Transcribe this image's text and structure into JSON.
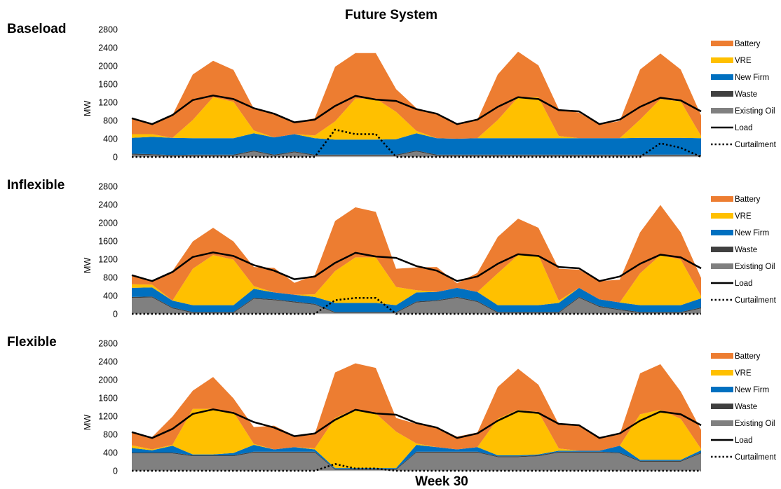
{
  "chart_data": {
    "type": "area",
    "title": "Future System",
    "xlabel": "Week 30",
    "ylabel": "MW",
    "ylim": [
      0,
      2800
    ],
    "yticks": [
      "0",
      "400",
      "800",
      "1200",
      "1600",
      "2000",
      "2400",
      "2800"
    ],
    "x_hours": [
      0,
      6,
      12,
      18,
      24,
      30,
      36,
      42,
      48,
      54,
      60,
      66,
      72,
      78,
      84,
      90,
      96,
      102,
      108,
      114,
      120,
      126,
      132,
      138,
      144,
      150,
      156,
      162,
      168
    ],
    "legend": [
      "Battery",
      "VRE",
      "New Firm",
      "Waste",
      "Existing Oil",
      "Load",
      "Curtailment"
    ],
    "colors": {
      "Battery": "#ED7D31",
      "VRE": "#FFC000",
      "New Firm": "#0070C0",
      "Waste": "#404040",
      "Existing Oil": "#808080",
      "Load": "#000000",
      "Curtailment": "#000000"
    },
    "load": [
      850,
      720,
      920,
      1250,
      1350,
      1270,
      1070,
      950,
      760,
      820,
      1120,
      1340,
      1260,
      1230,
      1050,
      950,
      720,
      820,
      1100,
      1310,
      1270,
      1030,
      1000,
      720,
      820,
      1100,
      1300,
      1240,
      1000
    ],
    "panels": [
      {
        "title": "Baseload",
        "series": [
          {
            "name": "Existing Oil",
            "values": [
              50,
              40,
              20,
              30,
              30,
              30,
              120,
              30,
              100,
              30,
              30,
              30,
              30,
              30,
              120,
              30,
              30,
              30,
              30,
              30,
              30,
              30,
              30,
              30,
              30,
              30,
              30,
              30,
              30
            ]
          },
          {
            "name": "Waste",
            "values": [
              20,
              20,
              20,
              20,
              20,
              20,
              20,
              20,
              20,
              20,
              20,
              20,
              20,
              20,
              20,
              20,
              20,
              20,
              20,
              20,
              20,
              20,
              20,
              20,
              20,
              20,
              20,
              20,
              20
            ]
          },
          {
            "name": "New Firm",
            "values": [
              350,
              380,
              380,
              360,
              360,
              360,
              380,
              380,
              380,
              360,
              330,
              330,
              330,
              340,
              380,
              360,
              350,
              360,
              360,
              360,
              360,
              360,
              360,
              360,
              360,
              370,
              370,
              370,
              360
            ]
          },
          {
            "name": "VRE",
            "values": [
              80,
              60,
              0,
              400,
              900,
              800,
              60,
              0,
              0,
              60,
              400,
              900,
              900,
              600,
              50,
              0,
              0,
              0,
              400,
              900,
              900,
              50,
              0,
              0,
              0,
              400,
              850,
              800,
              50
            ]
          },
          {
            "name": "Battery",
            "values": [
              350,
              240,
              500,
              1000,
              800,
              700,
              480,
              520,
              260,
              380,
              1200,
              1000,
              1000,
              500,
              500,
              540,
              310,
              410,
              1000,
              1000,
              700,
              590,
              560,
              300,
              380,
              1100,
              1000,
              700,
              450
            ]
          },
          {
            "name": "Curtailment",
            "values": [
              0,
              0,
              0,
              0,
              0,
              0,
              0,
              0,
              0,
              0,
              600,
              500,
              500,
              0,
              0,
              0,
              0,
              0,
              0,
              0,
              0,
              0,
              0,
              0,
              0,
              0,
              300,
              200,
              0
            ]
          }
        ]
      },
      {
        "title": "Inflexible",
        "series": [
          {
            "name": "Existing Oil",
            "values": [
              350,
              360,
              120,
              20,
              20,
              20,
              330,
              300,
              250,
              200,
              20,
              20,
              20,
              20,
              250,
              280,
              350,
              260,
              20,
              20,
              20,
              20,
              350,
              150,
              80,
              20,
              20,
              20,
              120
            ]
          },
          {
            "name": "Waste",
            "values": [
              20,
              20,
              20,
              20,
              20,
              20,
              20,
              20,
              20,
              20,
              20,
              20,
              20,
              20,
              20,
              20,
              20,
              20,
              20,
              20,
              20,
              20,
              20,
              20,
              20,
              20,
              20,
              20,
              20
            ]
          },
          {
            "name": "New Firm",
            "values": [
              200,
              200,
              150,
              150,
              150,
              150,
              200,
              150,
              150,
              150,
              200,
              200,
              200,
              150,
              200,
              180,
              200,
              200,
              150,
              150,
              150,
              200,
              200,
              150,
              150,
              150,
              150,
              150,
              200
            ]
          },
          {
            "name": "VRE",
            "values": [
              80,
              60,
              0,
              800,
              1100,
              1000,
              60,
              0,
              0,
              60,
              700,
              1000,
              1000,
              400,
              50,
              0,
              0,
              0,
              700,
              1100,
              1100,
              50,
              0,
              0,
              0,
              700,
              1100,
              1000,
              50
            ]
          },
          {
            "name": "Battery",
            "values": [
              200,
              60,
              650,
              600,
              600,
              400,
              420,
              540,
              260,
              420,
              1100,
              1100,
              1000,
              400,
              500,
              550,
              100,
              420,
              800,
              800,
              600,
              700,
              400,
              400,
              500,
              900,
              1100,
              600,
              400
            ]
          },
          {
            "name": "Curtailment",
            "values": [
              0,
              0,
              0,
              0,
              0,
              0,
              0,
              0,
              0,
              0,
              300,
              350,
              350,
              0,
              0,
              0,
              0,
              0,
              0,
              0,
              0,
              0,
              0,
              0,
              0,
              0,
              0,
              0,
              0
            ]
          }
        ]
      },
      {
        "title": "Flexible",
        "series": [
          {
            "name": "Existing Oil",
            "values": [
              380,
              380,
              380,
              320,
              320,
              320,
              400,
              400,
              400,
              400,
              20,
              20,
              20,
              20,
              400,
              400,
              400,
              400,
              300,
              300,
              320,
              400,
              400,
              400,
              380,
              200,
              200,
              200,
              380
            ]
          },
          {
            "name": "Waste",
            "values": [
              20,
              20,
              20,
              20,
              20,
              20,
              20,
              20,
              20,
              20,
              20,
              20,
              20,
              20,
              20,
              20,
              20,
              20,
              20,
              20,
              20,
              20,
              20,
              20,
              20,
              20,
              20,
              20,
              20
            ]
          },
          {
            "name": "New Firm",
            "values": [
              100,
              50,
              150,
              20,
              20,
              50,
              150,
              50,
              100,
              50,
              20,
              20,
              20,
              20,
              150,
              100,
              50,
              100,
              20,
              20,
              20,
              20,
              20,
              20,
              150,
              20,
              20,
              20,
              50
            ]
          },
          {
            "name": "VRE",
            "values": [
              60,
              20,
              20,
              1000,
              1000,
              900,
              20,
              0,
              0,
              20,
              1100,
              1300,
              1200,
              800,
              30,
              0,
              0,
              0,
              800,
              1000,
              930,
              50,
              0,
              0,
              0,
              1000,
              1100,
              900,
              30
            ]
          },
          {
            "name": "Battery",
            "values": [
              290,
              270,
              620,
              400,
              700,
              300,
              370,
              520,
              250,
              320,
              1000,
              1000,
              1000,
              300,
              430,
              430,
              280,
              320,
              700,
              900,
              600,
              530,
              560,
              300,
              250,
              900,
              1000,
              600,
              420
            ]
          },
          {
            "name": "Curtailment",
            "values": [
              0,
              0,
              0,
              0,
              0,
              0,
              0,
              0,
              0,
              0,
              150,
              50,
              50,
              0,
              0,
              0,
              0,
              0,
              0,
              0,
              0,
              0,
              0,
              0,
              0,
              0,
              0,
              0,
              0
            ]
          }
        ]
      }
    ]
  }
}
